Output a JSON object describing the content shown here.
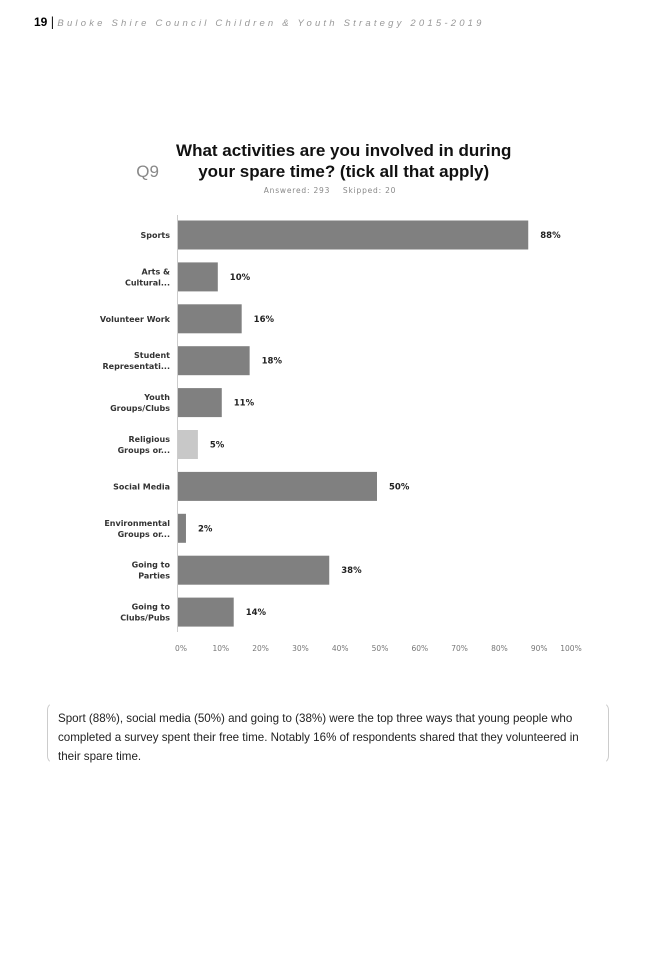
{
  "header": {
    "page_number": "19",
    "separator": "|",
    "doc_title": "Buloke Shire Council Children & Youth Strategy 2015-2019"
  },
  "chart_data": {
    "type": "bar",
    "orientation": "horizontal",
    "title_prefix": "Q9",
    "title": "What activities are you involved in during your spare time? (tick all that apply)",
    "subtitle": "Answered: 293    Skipped: 20",
    "categories": [
      [
        "Sports"
      ],
      [
        "Arts &",
        "Cultural..."
      ],
      [
        "Volunteer Work"
      ],
      [
        "Student",
        "Representati..."
      ],
      [
        "Youth",
        "Groups/Clubs"
      ],
      [
        "Religious",
        "Groups or..."
      ],
      [
        "Social Media"
      ],
      [
        "Environmental",
        "Groups or..."
      ],
      [
        "Going to",
        "Parties"
      ],
      [
        "Going to",
        "Clubs/Pubs"
      ]
    ],
    "values": [
      88,
      10,
      16,
      18,
      11,
      5,
      50,
      2,
      38,
      14
    ],
    "value_labels": [
      "88%",
      "10%",
      "16%",
      "18%",
      "11%",
      "5%",
      "50%",
      "2%",
      "38%",
      "14%"
    ],
    "xlim": [
      0,
      100
    ],
    "xticks": [
      "0%",
      "10%",
      "20%",
      "30%",
      "40%",
      "50%",
      "60%",
      "70%",
      "80%",
      "90%",
      "100%"
    ],
    "colors": {
      "bar": "#808080",
      "highlight": "#c8c8c8"
    },
    "highlight_index": 5,
    "grid": false
  },
  "note": "Sport (88%), social media (50%) and going to (38%) were the top three ways that young people who completed a survey spent their free time. Notably 16% of respondents shared that they volunteered in their spare time."
}
